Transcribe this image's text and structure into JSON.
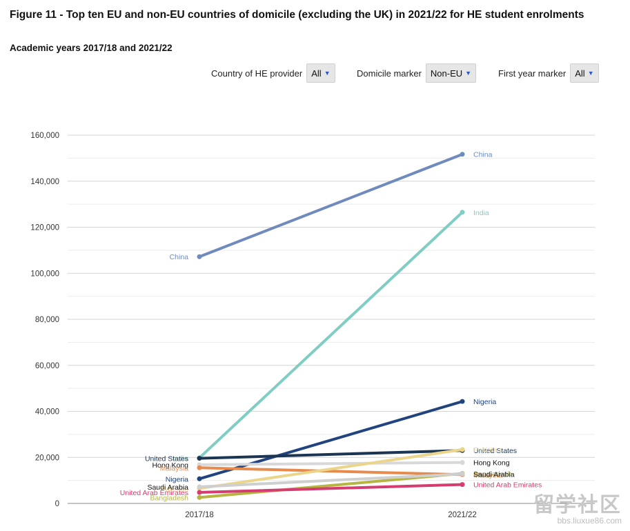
{
  "header": {
    "title": "Figure 11 - Top ten EU and non-EU countries of domicile (excluding the UK) in 2021/22 for HE student enrolments",
    "subtitle": "Academic years 2017/18 and 2021/22"
  },
  "filters": {
    "provider": {
      "label": "Country of HE provider",
      "value": "All"
    },
    "domicile": {
      "label": "Domicile marker",
      "value": "Non-EU"
    },
    "first_year": {
      "label": "First year marker",
      "value": "All"
    }
  },
  "watermark": {
    "text": "留学社区",
    "url": "bbs.liuxue86.com"
  },
  "chart_data": {
    "type": "line",
    "categories": [
      "2017/18",
      "2021/22"
    ],
    "ylim": [
      0,
      160000
    ],
    "yticks": [
      0,
      20000,
      40000,
      60000,
      80000,
      100000,
      120000,
      140000,
      160000
    ],
    "ytick_labels": [
      "0",
      "20,000",
      "40,000",
      "60,000",
      "80,000",
      "100,000",
      "120,000",
      "140,000",
      "160,000"
    ],
    "grid": true,
    "series": [
      {
        "name": "China",
        "values": [
          107200,
          151700
        ],
        "color": "#6f8bbd"
      },
      {
        "name": "India",
        "values": [
          19800,
          126500
        ],
        "color": "#7fcdc3"
      },
      {
        "name": "Nigeria",
        "values": [
          10700,
          44300
        ],
        "color": "#21447e"
      },
      {
        "name": "United States",
        "values": [
          19600,
          23000
        ],
        "color": "#1c3553"
      },
      {
        "name": "Hong Kong",
        "values": [
          16800,
          17800
        ],
        "color": "#d8d8d8"
      },
      {
        "name": "Malaysia",
        "values": [
          15500,
          12500
        ],
        "color": "#e78a4e"
      },
      {
        "name": "Pakistan",
        "values": [
          6500,
          23400
        ],
        "color": "#ead58a"
      },
      {
        "name": "Bangladesh",
        "values": [
          2600,
          13000
        ],
        "color": "#b7b541"
      },
      {
        "name": "Saudi Arabia",
        "values": [
          7200,
          12800
        ],
        "color": "#cfcfcf"
      },
      {
        "name": "United Arab Emirates",
        "values": [
          4800,
          8200
        ],
        "color": "#d43d6f"
      }
    ]
  }
}
